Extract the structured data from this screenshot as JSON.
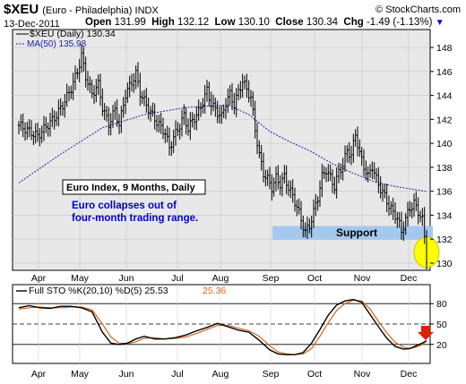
{
  "header": {
    "symbol": "$XEU",
    "symbol_desc": "(Euro - Philadelphia)",
    "exchange": "INDX",
    "date": "13-Dec-2011",
    "brand": "© StockCharts.com",
    "open_label": "Open",
    "open": "131.99",
    "high_label": "High",
    "high": "132.12",
    "low_label": "Low",
    "low": "130.10",
    "close_label": "Close",
    "close": "130.34",
    "chg_label": "Chg",
    "chg": "-1.49 (-1.13%)"
  },
  "chart_data": [
    {
      "type": "ohlc",
      "legend": [
        "$XEU (Daily) 130.34",
        "MA(50) 135.98"
      ],
      "x_tick_labels": [
        "Apr",
        "May",
        "Jun",
        "Jul",
        "Aug",
        "Sep",
        "Oct",
        "Nov",
        "Dec"
      ],
      "y_tick_labels": [
        "130",
        "132",
        "134",
        "136",
        "138",
        "140",
        "142",
        "144",
        "146",
        "148"
      ],
      "ylim": [
        129.4,
        149.5
      ],
      "annotations": {
        "title_box": "Euro Index, 9 Months, Daily",
        "note_line1": "Euro collapses out of",
        "note_line2": "four-month trading range.",
        "support_label": "Support"
      },
      "support_band": [
        131.95,
        133.1
      ],
      "highlight_circle": {
        "x_month": "Dec",
        "y": 130.9
      },
      "colors": {
        "price": "#000000",
        "ma": "#2222aa",
        "support": "#a4c8ee",
        "highlight": "#ffff00",
        "note": "#0000cc",
        "panel_bg": "#ffffff",
        "chart_bg": "#e8e8e8"
      },
      "series": [
        {
          "name": "$XEU",
          "close_path": [
            [
              0,
              141.5
            ],
            [
              5,
              141.0
            ],
            [
              9,
              140.6
            ],
            [
              13,
              141.4
            ],
            [
              17,
              142.1
            ],
            [
              21,
              143.2
            ],
            [
              25,
              144.6
            ],
            [
              28,
              146.0
            ],
            [
              30,
              147.3
            ],
            [
              32,
              145.6
            ],
            [
              35,
              144.1
            ],
            [
              38,
              144.9
            ],
            [
              40,
              143.0
            ],
            [
              43,
              141.6
            ],
            [
              46,
              142.8
            ],
            [
              48,
              141.5
            ],
            [
              51,
              144.1
            ],
            [
              54,
              145.1
            ],
            [
              56,
              145.8
            ],
            [
              58,
              144.2
            ],
            [
              61,
              143.2
            ],
            [
              64,
              142.3
            ],
            [
              66,
              141.8
            ],
            [
              68,
              141.3
            ],
            [
              70,
              140.9
            ],
            [
              72,
              139.6
            ],
            [
              74,
              140.5
            ],
            [
              77,
              141.5
            ],
            [
              79,
              142.3
            ],
            [
              81,
              141.2
            ],
            [
              83,
              141.9
            ],
            [
              86,
              142.6
            ],
            [
              88,
              143.5
            ],
            [
              90,
              144.4
            ],
            [
              92,
              143.3
            ],
            [
              94,
              142.8
            ],
            [
              97,
              142.2
            ],
            [
              99,
              143.4
            ],
            [
              101,
              144.1
            ],
            [
              103,
              143.2
            ],
            [
              105,
              144.3
            ],
            [
              107,
              145.2
            ],
            [
              109,
              144.5
            ],
            [
              111,
              143.8
            ],
            [
              113,
              141.2
            ],
            [
              115,
              139.0
            ],
            [
              117,
              137.5
            ],
            [
              119,
              137.0
            ],
            [
              121,
              136.3
            ],
            [
              123,
              137.1
            ],
            [
              125,
              136.6
            ],
            [
              127,
              137.2
            ],
            [
              129,
              136.3
            ],
            [
              131,
              135.6
            ],
            [
              133,
              134.7
            ],
            [
              135,
              133.6
            ],
            [
              137,
              132.6
            ],
            [
              139,
              133.1
            ],
            [
              141,
              134.3
            ],
            [
              143,
              135.5
            ],
            [
              145,
              137.2
            ],
            [
              147,
              137.8
            ],
            [
              149,
              137.1
            ],
            [
              151,
              136.4
            ],
            [
              153,
              137.6
            ],
            [
              155,
              138.2
            ],
            [
              157,
              139.4
            ],
            [
              159,
              139.0
            ],
            [
              161,
              140.8
            ],
            [
              163,
              139.1
            ],
            [
              165,
              138.1
            ],
            [
              167,
              137.2
            ],
            [
              169,
              138.1
            ],
            [
              171,
              137.0
            ],
            [
              173,
              136.2
            ],
            [
              175,
              135.6
            ],
            [
              177,
              134.8
            ],
            [
              179,
              134.2
            ],
            [
              181,
              133.8
            ],
            [
              183,
              132.6
            ],
            [
              185,
              133.7
            ],
            [
              187,
              134.6
            ],
            [
              189,
              135.0
            ],
            [
              191,
              134.3
            ],
            [
              193,
              133.6
            ],
            [
              194,
              132.2
            ],
            [
              195,
              130.4
            ]
          ],
          "bar_range": 1.5
        },
        {
          "name": "MA(50)",
          "path": [
            [
              0,
              136.7
            ],
            [
              20,
              139.1
            ],
            [
              40,
              141.3
            ],
            [
              60,
              142.4
            ],
            [
              80,
              143.0
            ],
            [
              100,
              143.2
            ],
            [
              110,
              142.4
            ],
            [
              120,
              141.0
            ],
            [
              130,
              140.1
            ],
            [
              140,
              139.3
            ],
            [
              150,
              138.3
            ],
            [
              160,
              137.5
            ],
            [
              170,
              136.8
            ],
            [
              180,
              136.4
            ],
            [
              195,
              135.98
            ]
          ]
        }
      ]
    },
    {
      "type": "line",
      "legend": [
        "Full STO %K(20,10) %D(5) 25.53",
        "25.36"
      ],
      "x_tick_labels": [
        "Apr",
        "May",
        "Jun",
        "Jul",
        "Aug",
        "Sep",
        "Oct",
        "Nov",
        "Dec"
      ],
      "y_tick_labels": [
        "20",
        "50",
        "80"
      ],
      "ylim": [
        0,
        100
      ],
      "reference_lines": [
        20,
        50,
        80
      ],
      "arrow_color": "#dd2200",
      "series": [
        {
          "name": "%K",
          "values": [
            [
              0,
              74
            ],
            [
              5,
              77
            ],
            [
              10,
              74
            ],
            [
              15,
              73
            ],
            [
              20,
              76
            ],
            [
              25,
              76
            ],
            [
              30,
              74
            ],
            [
              35,
              68
            ],
            [
              40,
              38
            ],
            [
              44,
              22
            ],
            [
              48,
              20
            ],
            [
              52,
              22
            ],
            [
              56,
              28
            ],
            [
              60,
              32
            ],
            [
              65,
              28
            ],
            [
              70,
              28
            ],
            [
              75,
              30
            ],
            [
              80,
              34
            ],
            [
              85,
              40
            ],
            [
              90,
              45
            ],
            [
              95,
              51
            ],
            [
              100,
              46
            ],
            [
              105,
              41
            ],
            [
              110,
              38
            ],
            [
              115,
              26
            ],
            [
              120,
              12
            ],
            [
              124,
              6
            ],
            [
              128,
              5
            ],
            [
              132,
              5
            ],
            [
              136,
              8
            ],
            [
              140,
              22
            ],
            [
              144,
              42
            ],
            [
              148,
              63
            ],
            [
              152,
              78
            ],
            [
              156,
              84
            ],
            [
              160,
              86
            ],
            [
              164,
              82
            ],
            [
              168,
              64
            ],
            [
              172,
              46
            ],
            [
              176,
              29
            ],
            [
              180,
              17
            ],
            [
              184,
              13
            ],
            [
              187,
              14
            ],
            [
              190,
              18
            ],
            [
              193,
              22
            ],
            [
              195,
              25.53
            ]
          ]
        },
        {
          "name": "%D",
          "values": [
            [
              0,
              72
            ],
            [
              5,
              74
            ],
            [
              10,
              75
            ],
            [
              15,
              74
            ],
            [
              20,
              74
            ],
            [
              25,
              75
            ],
            [
              30,
              75
            ],
            [
              35,
              71
            ],
            [
              40,
              50
            ],
            [
              44,
              31
            ],
            [
              48,
              22
            ],
            [
              52,
              21
            ],
            [
              56,
              24
            ],
            [
              60,
              29
            ],
            [
              65,
              30
            ],
            [
              70,
              28
            ],
            [
              75,
              29
            ],
            [
              80,
              31
            ],
            [
              85,
              36
            ],
            [
              90,
              42
            ],
            [
              95,
              48
            ],
            [
              100,
              48
            ],
            [
              105,
              44
            ],
            [
              110,
              40
            ],
            [
              115,
              32
            ],
            [
              120,
              18
            ],
            [
              124,
              9
            ],
            [
              128,
              6
            ],
            [
              132,
              5
            ],
            [
              136,
              6
            ],
            [
              140,
              14
            ],
            [
              144,
              32
            ],
            [
              148,
              52
            ],
            [
              152,
              70
            ],
            [
              156,
              80
            ],
            [
              160,
              85
            ],
            [
              164,
              84
            ],
            [
              168,
              72
            ],
            [
              172,
              54
            ],
            [
              176,
              37
            ],
            [
              180,
              23
            ],
            [
              184,
              16
            ],
            [
              187,
              14
            ],
            [
              190,
              16
            ],
            [
              193,
              20
            ],
            [
              195,
              25.36
            ]
          ]
        }
      ]
    }
  ]
}
